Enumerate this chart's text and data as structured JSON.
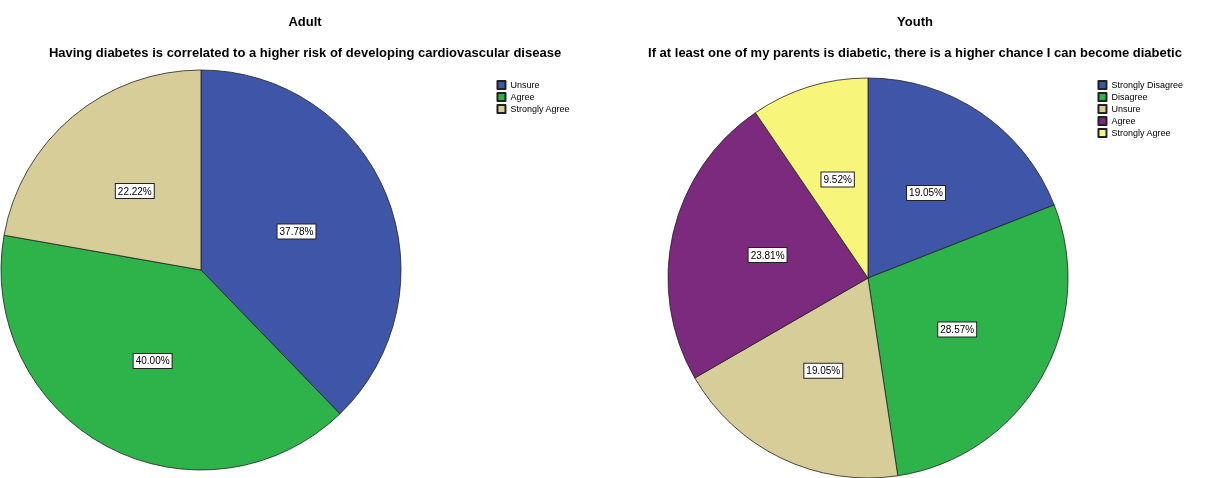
{
  "chart_data": [
    {
      "type": "pie",
      "title": "Adult",
      "subtitle": "Having diabetes is correlated to a higher risk of developing cardiovascular disease",
      "categories": [
        "Unsure",
        "Agree",
        "Strongly Agree"
      ],
      "values": [
        37.78,
        40.0,
        22.22
      ],
      "value_labels": [
        "37.78%",
        "40.00%",
        "22.22%"
      ],
      "colors": [
        "#3f56a8",
        "#2eb34b",
        "#d7cd98"
      ],
      "legend": "top right"
    },
    {
      "type": "pie",
      "title": "Youth",
      "subtitle": "If at least one of my parents is diabetic, there is a higher chance I can become diabetic",
      "categories": [
        "Strongly Disagree",
        "Disagree",
        "Unsure",
        "Agree",
        "Strongly Agree"
      ],
      "values": [
        19.05,
        28.57,
        19.05,
        23.81,
        9.52
      ],
      "value_labels": [
        "19.05%",
        "28.57%",
        "19.05%",
        "23.81%",
        "9.52%"
      ],
      "colors": [
        "#3f56a8",
        "#2eb34b",
        "#d7cd98",
        "#7b2a7e",
        "#f7f57a"
      ],
      "legend": "top right"
    }
  ]
}
